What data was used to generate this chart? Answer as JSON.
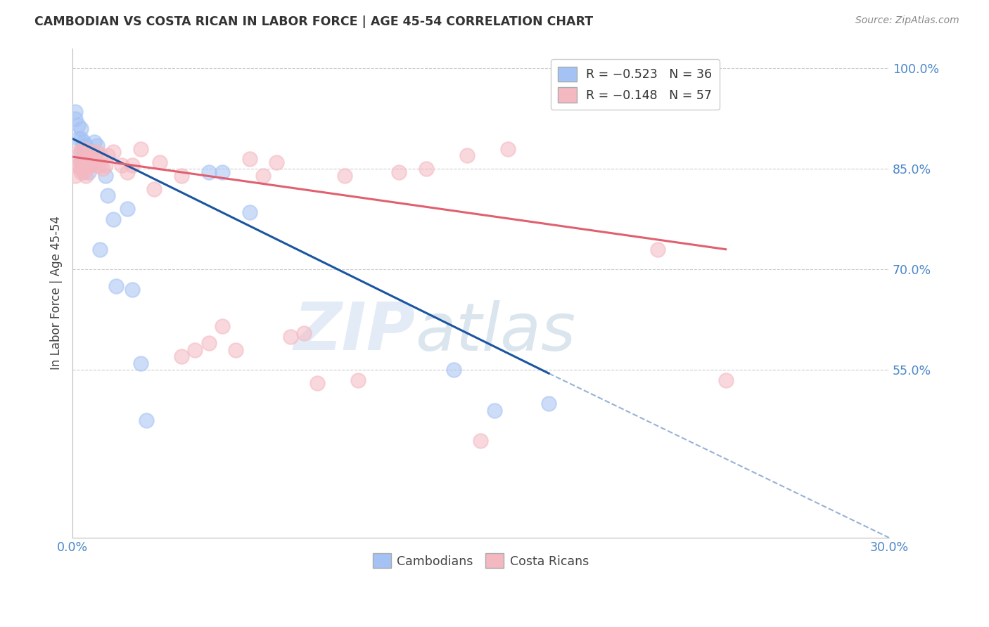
{
  "title": "CAMBODIAN VS COSTA RICAN IN LABOR FORCE | AGE 45-54 CORRELATION CHART",
  "source": "Source: ZipAtlas.com",
  "ylabel": "In Labor Force | Age 45-54",
  "xlim": [
    0.0,
    0.3
  ],
  "ylim": [
    0.3,
    1.03
  ],
  "ytick_vals": [
    1.0,
    0.85,
    0.7,
    0.55
  ],
  "ytick_labels": [
    "100.0%",
    "85.0%",
    "70.0%",
    "55.0%"
  ],
  "xtick_vals": [
    0.0,
    0.3
  ],
  "xtick_labels": [
    "0.0%",
    "30.0%"
  ],
  "cambodian_color": "#a4c2f4",
  "costarican_color": "#f4b8c1",
  "regression_cambodian_color": "#1a56a0",
  "regression_costarican_color": "#e06070",
  "background_color": "#ffffff",
  "grid_color": "#cccccc",
  "axis_color": "#4a86c8",
  "watermark_zip": "ZIP",
  "watermark_atlas": "atlas",
  "cambodian_scatter_x": [
    0.001,
    0.001,
    0.002,
    0.002,
    0.003,
    0.003,
    0.003,
    0.004,
    0.004,
    0.004,
    0.005,
    0.005,
    0.005,
    0.006,
    0.006,
    0.006,
    0.007,
    0.007,
    0.008,
    0.009,
    0.01,
    0.012,
    0.013,
    0.015,
    0.016,
    0.02,
    0.022,
    0.025,
    0.027,
    0.05,
    0.055,
    0.065,
    0.14,
    0.155,
    0.175,
    0.003
  ],
  "cambodian_scatter_y": [
    0.935,
    0.925,
    0.915,
    0.895,
    0.91,
    0.895,
    0.875,
    0.89,
    0.875,
    0.86,
    0.885,
    0.875,
    0.87,
    0.875,
    0.86,
    0.845,
    0.875,
    0.86,
    0.89,
    0.885,
    0.73,
    0.84,
    0.81,
    0.775,
    0.675,
    0.79,
    0.67,
    0.56,
    0.475,
    0.845,
    0.845,
    0.785,
    0.55,
    0.49,
    0.5,
    0.86
  ],
  "costarican_scatter_x": [
    0.001,
    0.001,
    0.002,
    0.002,
    0.003,
    0.003,
    0.003,
    0.004,
    0.004,
    0.005,
    0.005,
    0.005,
    0.006,
    0.006,
    0.007,
    0.007,
    0.008,
    0.008,
    0.009,
    0.009,
    0.01,
    0.01,
    0.011,
    0.012,
    0.013,
    0.015,
    0.018,
    0.02,
    0.022,
    0.025,
    0.03,
    0.032,
    0.04,
    0.045,
    0.05,
    0.055,
    0.065,
    0.07,
    0.075,
    0.085,
    0.09,
    0.1,
    0.105,
    0.12,
    0.13,
    0.145,
    0.15,
    0.16,
    0.215,
    0.24,
    0.003,
    0.004,
    0.004,
    0.006,
    0.04,
    0.06,
    0.08
  ],
  "costarican_scatter_y": [
    0.855,
    0.84,
    0.875,
    0.855,
    0.875,
    0.86,
    0.85,
    0.88,
    0.865,
    0.865,
    0.855,
    0.84,
    0.875,
    0.86,
    0.875,
    0.855,
    0.87,
    0.86,
    0.875,
    0.855,
    0.87,
    0.855,
    0.85,
    0.855,
    0.87,
    0.875,
    0.855,
    0.845,
    0.855,
    0.88,
    0.82,
    0.86,
    0.84,
    0.58,
    0.59,
    0.615,
    0.865,
    0.84,
    0.86,
    0.605,
    0.53,
    0.84,
    0.535,
    0.845,
    0.85,
    0.87,
    0.445,
    0.88,
    0.73,
    0.535,
    0.845,
    0.855,
    0.845,
    0.855,
    0.57,
    0.58,
    0.6
  ],
  "regression_cambodian_x0": 0.0,
  "regression_cambodian_y0": 0.895,
  "regression_cambodian_x1": 0.175,
  "regression_cambodian_y1": 0.545,
  "regression_cambodian_dash_x1": 0.3,
  "regression_cambodian_dash_y1": 0.3,
  "regression_costarican_x0": 0.0,
  "regression_costarican_y0": 0.868,
  "regression_costarican_x1": 0.24,
  "regression_costarican_y1": 0.73
}
